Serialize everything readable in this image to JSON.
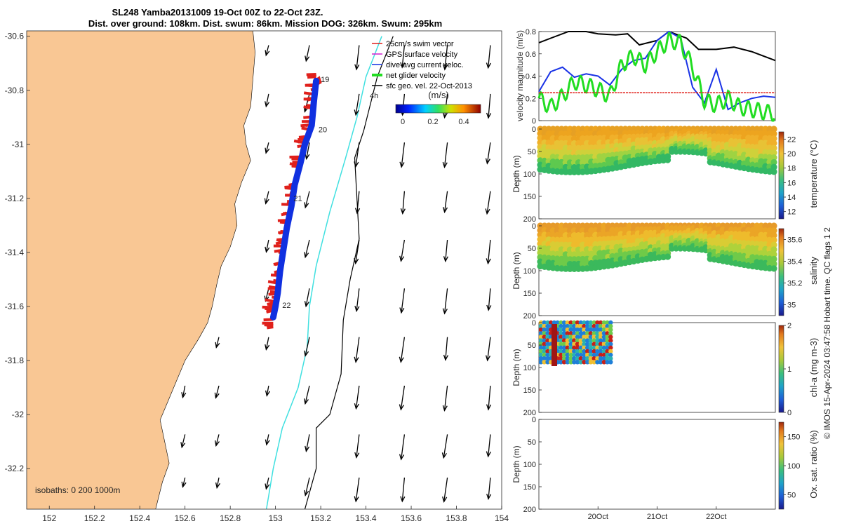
{
  "title": {
    "line1": "SL248 Yamba20131009 19-Oct 00Z to 22-Oct 23Z.",
    "line2": "Dist. over ground: 108km. Dist. swum: 86km. Mission DOG: 326km. Swum: 295km"
  },
  "credit": "© IMOS 15-Apr-2024 03:47:58 Hobart time. QC flags 1  2",
  "chart_data": [
    {
      "type": "scatter",
      "panel": "map",
      "xlim": [
        151.9,
        154.0
      ],
      "ylim": [
        -32.35,
        -30.58
      ],
      "x_ticks": [
        "152",
        "152.2",
        "152.4",
        "152.6",
        "152.8",
        "153",
        "153.2",
        "153.4",
        "153.6",
        "153.8",
        "154"
      ],
      "x_tick_values": [
        152,
        152.2,
        152.4,
        152.6,
        152.8,
        153,
        153.2,
        153.4,
        153.6,
        153.8,
        154
      ],
      "y_ticks": [
        "-30.6",
        "-30.8",
        "-31",
        "-31.2",
        "-31.4",
        "-31.6",
        "-31.8",
        "-32",
        "-32.2"
      ],
      "y_tick_values": [
        -30.6,
        -30.8,
        -31,
        -31.2,
        -31.4,
        -31.6,
        -31.8,
        -32,
        -32.2
      ],
      "legend": [
        {
          "label": "25cm/s swim vector",
          "color": "#e0201b"
        },
        {
          "label": "GPS surface velocity",
          "color": "#d020d0"
        },
        {
          "label": "dive-avg current veloc.",
          "color": "#1030e0"
        },
        {
          "label": "net glider velocity",
          "color": "#22dd22"
        },
        {
          "label": "sfc geo. vel. 22-Oct-2013",
          "color": "#000000"
        }
      ],
      "annotation_4h": "4h",
      "colorbar": {
        "title": "(m/s)",
        "ticks": [
          "0",
          "0.2",
          "0.4"
        ]
      },
      "day_labels": [
        {
          "text": "19",
          "lon": 153.2,
          "lat": -30.77
        },
        {
          "text": "20",
          "lon": 153.19,
          "lat": -30.955
        },
        {
          "text": "21",
          "lon": 153.08,
          "lat": -31.21
        },
        {
          "text": "22",
          "lon": 153.03,
          "lat": -31.605
        }
      ],
      "isobaths_label": "isobaths: 0   200  1000m",
      "glider_track": [
        [
          153.18,
          -30.765
        ],
        [
          153.17,
          -30.84
        ],
        [
          153.16,
          -30.93
        ],
        [
          153.13,
          -31.0
        ],
        [
          153.11,
          -31.07
        ],
        [
          153.085,
          -31.15
        ],
        [
          153.07,
          -31.23
        ],
        [
          153.05,
          -31.31
        ],
        [
          153.035,
          -31.39
        ],
        [
          153.02,
          -31.47
        ],
        [
          153.01,
          -31.55
        ],
        [
          153.0,
          -31.6
        ],
        [
          152.99,
          -31.64
        ]
      ],
      "isobath_200m": [
        [
          153.47,
          -30.6
        ],
        [
          153.4,
          -30.75
        ],
        [
          153.36,
          -30.9
        ],
        [
          153.31,
          -31.05
        ],
        [
          153.24,
          -31.25
        ],
        [
          153.18,
          -31.45
        ],
        [
          153.15,
          -31.6
        ],
        [
          153.14,
          -31.75
        ],
        [
          153.1,
          -31.9
        ],
        [
          153.03,
          -32.05
        ],
        [
          152.99,
          -32.2
        ],
        [
          152.96,
          -32.35
        ]
      ],
      "isobath_1000m": [
        [
          153.52,
          -30.6
        ],
        [
          153.45,
          -30.75
        ],
        [
          153.39,
          -30.95
        ],
        [
          153.35,
          -31.05
        ],
        [
          153.36,
          -31.2
        ],
        [
          153.37,
          -31.35
        ],
        [
          153.33,
          -31.5
        ],
        [
          153.3,
          -31.65
        ],
        [
          153.29,
          -31.85
        ],
        [
          153.24,
          -32.0
        ],
        [
          153.18,
          -32.05
        ],
        [
          153.18,
          -32.2
        ],
        [
          153.13,
          -32.35
        ]
      ],
      "coastline": [
        [
          152.9,
          -30.58
        ],
        [
          152.91,
          -30.66
        ],
        [
          152.9,
          -30.76
        ],
        [
          152.89,
          -30.86
        ],
        [
          152.86,
          -30.93
        ],
        [
          152.87,
          -31.0
        ],
        [
          152.89,
          -31.06
        ],
        [
          152.85,
          -31.14
        ],
        [
          152.82,
          -31.22
        ],
        [
          152.83,
          -31.3
        ],
        [
          152.8,
          -31.38
        ],
        [
          152.76,
          -31.45
        ],
        [
          152.74,
          -31.52
        ],
        [
          152.72,
          -31.6
        ],
        [
          152.7,
          -31.66
        ],
        [
          152.66,
          -31.72
        ],
        [
          152.6,
          -31.8
        ],
        [
          152.56,
          -31.88
        ],
        [
          152.52,
          -31.96
        ],
        [
          152.49,
          -32.02
        ],
        [
          152.51,
          -32.1
        ],
        [
          152.53,
          -32.18
        ],
        [
          152.5,
          -32.25
        ],
        [
          152.47,
          -32.35
        ]
      ],
      "current_vectors_note": "southward surface geostrophic velocity arrows"
    },
    {
      "type": "line",
      "panel": "velocity",
      "ylabel": "velocity magnitude (m/s)",
      "ylim": [
        0,
        0.8
      ],
      "y_ticks": [
        "0",
        "0.2",
        "0.4",
        "0.6",
        "0.8"
      ],
      "x_range_days": [
        19.0,
        23.0
      ],
      "series": [
        {
          "color": "#000000",
          "x": [
            19.0,
            19.2,
            19.5,
            19.8,
            20.0,
            20.3,
            20.5,
            20.7,
            21.0,
            21.2,
            21.5,
            21.7,
            22.0,
            22.3,
            22.6,
            23.0
          ],
          "values": [
            0.7,
            0.74,
            0.82,
            0.84,
            0.78,
            0.77,
            0.78,
            0.68,
            0.72,
            0.8,
            0.74,
            0.64,
            0.64,
            0.66,
            0.62,
            0.54
          ]
        },
        {
          "color": "#1a33e6",
          "x": [
            19.0,
            19.2,
            19.4,
            19.6,
            19.8,
            20.0,
            20.2,
            20.4,
            20.6,
            20.8,
            21.0,
            21.2,
            21.4,
            21.6,
            21.8,
            22.0,
            22.2,
            22.4,
            22.6,
            22.8,
            23.0
          ],
          "values": [
            0.26,
            0.44,
            0.48,
            0.39,
            0.42,
            0.4,
            0.32,
            0.46,
            0.54,
            0.56,
            0.72,
            0.82,
            0.74,
            0.3,
            0.16,
            0.46,
            0.1,
            0.16,
            0.2,
            0.22,
            0.21
          ]
        },
        {
          "color": "#22dd22",
          "x": [
            19.0,
            19.2,
            19.4,
            19.6,
            19.8,
            20.0,
            20.2,
            20.4,
            20.6,
            20.8,
            21.0,
            21.2,
            21.4,
            21.6,
            21.8,
            22.0,
            22.2,
            22.4,
            22.6,
            22.8,
            23.0
          ],
          "values": [
            0.2,
            0.12,
            0.22,
            0.35,
            0.32,
            0.28,
            0.22,
            0.5,
            0.58,
            0.5,
            0.62,
            0.72,
            0.7,
            0.48,
            0.18,
            0.14,
            0.2,
            0.12,
            0.1,
            0.08,
            0.06
          ]
        },
        {
          "color": "#e0201b",
          "x": [
            19.0,
            23.0
          ],
          "values": [
            0.25,
            0.25
          ]
        }
      ]
    },
    {
      "type": "heatmap",
      "panel": "temperature",
      "ylabel": "Depth (m)",
      "clabel": "temperature (°C)",
      "y_ticks": [
        "0",
        "50",
        "100",
        "150",
        "200"
      ],
      "c_ticks": [
        "12",
        "14",
        "16",
        "18",
        "20",
        "22"
      ],
      "clim": [
        11,
        23
      ]
    },
    {
      "type": "heatmap",
      "panel": "salinity",
      "ylabel": "Depth (m)",
      "clabel": "salinity",
      "y_ticks": [
        "0",
        "50",
        "100",
        "150",
        "200"
      ],
      "c_ticks": [
        "35",
        "35.2",
        "35.4",
        "35.6"
      ],
      "clim": [
        34.9,
        35.7
      ]
    },
    {
      "type": "heatmap",
      "panel": "chl-a",
      "ylabel": "Depth (m)",
      "clabel": "chl-a (mg m-3)",
      "y_ticks": [
        "0",
        "50",
        "100",
        "150",
        "200"
      ],
      "c_ticks": [
        "0",
        "1",
        "2"
      ],
      "clim": [
        0,
        2
      ]
    },
    {
      "type": "heatmap",
      "panel": "oxygen",
      "ylabel": "Depth (m)",
      "clabel": "Ox. sat. ratio (%)",
      "y_ticks": [
        "0",
        "50",
        "100",
        "150",
        "200"
      ],
      "c_ticks": [
        "50",
        "100",
        "150"
      ],
      "clim": [
        25,
        175
      ],
      "x_ticks": [
        "20Oct",
        "21Oct",
        "22Oct"
      ],
      "x_tick_values": [
        20,
        21,
        22
      ]
    }
  ]
}
